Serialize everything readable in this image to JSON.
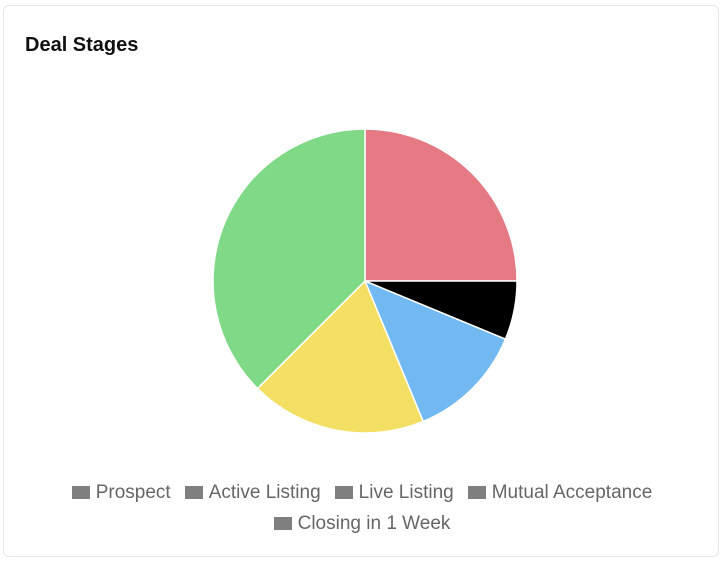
{
  "card": {
    "title": "Deal Stages"
  },
  "colors": {
    "legend_swatch": "#7f7f7f",
    "slice_border": "#ffffff"
  },
  "chart_data": {
    "type": "pie",
    "title": "Deal Stages",
    "legend_position": "bottom",
    "slices": [
      {
        "label": "Prospect",
        "value": 25,
        "color": "#e57a84"
      },
      {
        "label": "Active Listing",
        "value": 6.25,
        "color": "#000000"
      },
      {
        "label": "Live Listing",
        "value": 12.5,
        "color": "#72b9f1"
      },
      {
        "label": "Mutual Acceptance",
        "value": 18.75,
        "color": "#f3df63"
      },
      {
        "label": "Closing in 1 Week",
        "value": 37.5,
        "color": "#80d987"
      }
    ]
  }
}
